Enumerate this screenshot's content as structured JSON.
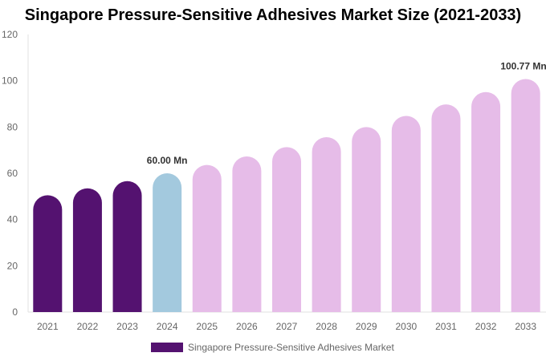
{
  "chart_data": {
    "type": "bar",
    "title": "Singapore Pressure-Sensitive Adhesives Market Size (2021-2033)",
    "categories": [
      "2021",
      "2022",
      "2023",
      "2024",
      "2025",
      "2026",
      "2027",
      "2028",
      "2029",
      "2030",
      "2031",
      "2032",
      "2033"
    ],
    "series": [
      {
        "name": "Singapore Pressure-Sensitive Adhesives Market",
        "values": [
          50.5,
          53.5,
          56.6,
          60.0,
          63.6,
          67.3,
          71.3,
          75.6,
          80.0,
          84.8,
          89.8,
          95.1,
          100.77
        ]
      }
    ],
    "bar_colors": [
      "#541270",
      "#541270",
      "#541270",
      "#A3C9DE",
      "#E6BCE8",
      "#E6BCE8",
      "#E6BCE8",
      "#E6BCE8",
      "#E6BCE8",
      "#E6BCE8",
      "#E6BCE8",
      "#E6BCE8",
      "#E6BCE8"
    ],
    "data_labels": [
      {
        "category": "2024",
        "text": "60.00 Mn"
      },
      {
        "category": "2033",
        "text": "100.77 Mn"
      }
    ],
    "ylim": [
      0,
      120
    ],
    "yticks": [
      0,
      20,
      40,
      60,
      80,
      100,
      120
    ],
    "xlabel": "",
    "ylabel": "",
    "grid": false,
    "legend_position": "bottom",
    "legend_color": "#541270"
  }
}
